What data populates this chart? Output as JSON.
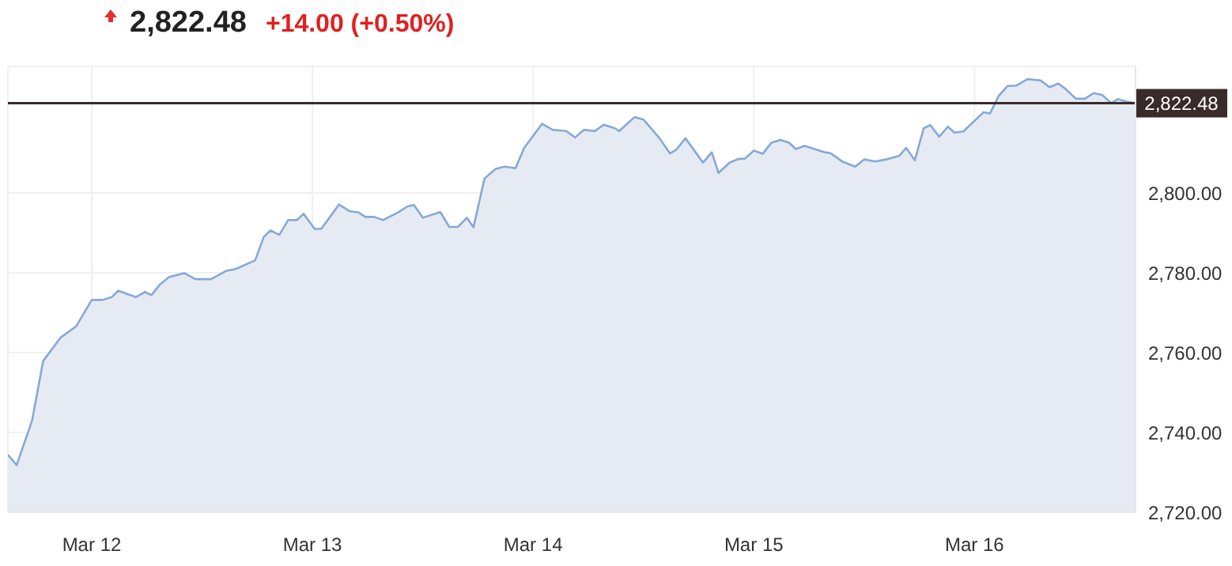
{
  "chart_data": {
    "type": "area",
    "title": "2,822.48",
    "subtitle": "+14.00 (+0.50%)",
    "x": [
      "--03-11T14:53",
      "--03-11T15:50",
      "--03-11T17:31",
      "--03-11T18:43",
      "--03-11T20:38",
      "--03-11T22:19",
      "--03-12T00:00",
      "--03-12T01:12",
      "--03-12T02:10",
      "--03-12T02:53",
      "--03-12T04:48",
      "--03-12T05:46",
      "--03-12T06:29",
      "--03-12T07:26",
      "--03-12T08:24",
      "--03-12T10:05",
      "--03-12T11:17",
      "--03-12T12:58",
      "--03-12T14:38",
      "--03-12T15:36",
      "--03-12T17:46",
      "--03-12T18:43",
      "--03-12T19:26",
      "--03-12T20:24",
      "--03-12T21:22",
      "--03-12T22:19",
      "--03-12T23:02",
      "--03-13T00:14",
      "--03-13T00:58",
      "--03-13T02:53",
      "--03-13T04:05",
      "--03-13T05:02",
      "--03-13T05:46",
      "--03-13T06:43",
      "--03-13T07:41",
      "--03-13T09:22",
      "--03-13T10:19",
      "--03-13T11:02",
      "--03-13T12:00",
      "--03-13T13:55",
      "--03-13T14:53",
      "--03-13T15:50",
      "--03-13T16:48",
      "--03-13T17:31",
      "--03-13T18:43",
      "--03-13T19:55",
      "--03-13T20:53",
      "--03-13T22:05",
      "--03-13T23:02",
      "--03-14T00:58",
      "--03-14T02:10",
      "--03-14T03:36",
      "--03-14T04:34",
      "--03-14T05:31",
      "--03-14T06:43",
      "--03-14T07:41",
      "--03-14T08:53",
      "--03-14T09:22",
      "--03-14T11:02",
      "--03-14T12:00",
      "--03-14T13:41",
      "--03-14T14:53",
      "--03-14T15:36",
      "--03-14T16:34",
      "--03-14T18:29",
      "--03-14T19:26",
      "--03-14T20:10",
      "--03-14T21:22",
      "--03-14T22:19",
      "--03-14T23:02",
      "--03-15T00:00",
      "--03-15T00:58",
      "--03-15T01:55",
      "--03-15T02:53",
      "--03-15T03:50",
      "--03-15T04:34",
      "--03-15T05:31",
      "--03-15T07:41",
      "--03-15T08:24",
      "--03-15T09:36",
      "--03-15T11:02",
      "--03-15T12:00",
      "--03-15T13:12",
      "--03-15T14:24",
      "--03-15T15:50",
      "--03-15T16:34",
      "--03-15T17:31",
      "--03-15T18:29",
      "--03-15T19:12",
      "--03-15T20:10",
      "--03-15T21:07",
      "--03-15T21:50",
      "--03-15T22:48",
      "--03-16T00:58",
      "--03-16T01:41",
      "--03-16T02:38",
      "--03-16T03:36",
      "--03-16T04:34",
      "--03-16T05:46",
      "--03-16T07:12",
      "--03-16T08:10",
      "--03-16T09:07",
      "--03-16T09:50",
      "--03-16T11:02",
      "--03-16T12:00",
      "--03-16T12:58",
      "--03-16T13:55",
      "--03-16T14:53",
      "--03-16T15:36",
      "--03-16T16:34",
      "--03-16T17:31"
    ],
    "series": [
      {
        "color": "#86a8d8",
        "values": [
          2734.4,
          2731.8,
          2743.0,
          2757.9,
          2763.8,
          2766.6,
          2773.2,
          2773.2,
          2773.9,
          2775.5,
          2773.9,
          2775.2,
          2774.4,
          2777.1,
          2778.9,
          2779.9,
          2778.4,
          2778.4,
          2780.5,
          2780.9,
          2783.1,
          2789.0,
          2790.6,
          2789.5,
          2793.2,
          2793.2,
          2794.8,
          2791.0,
          2791.0,
          2797.1,
          2795.4,
          2795.1,
          2794.0,
          2794.0,
          2793.2,
          2795.2,
          2796.6,
          2797.0,
          2793.8,
          2795.2,
          2791.5,
          2791.5,
          2793.8,
          2791.4,
          2803.6,
          2806.0,
          2806.6,
          2806.2,
          2811.3,
          2817.3,
          2815.8,
          2815.5,
          2813.9,
          2815.8,
          2815.5,
          2817.1,
          2816.2,
          2815.5,
          2819.0,
          2818.4,
          2813.9,
          2809.9,
          2810.9,
          2813.7,
          2807.6,
          2810.2,
          2805.0,
          2807.6,
          2808.5,
          2808.6,
          2810.6,
          2809.8,
          2812.6,
          2813.3,
          2812.6,
          2811.0,
          2811.8,
          2810.2,
          2809.9,
          2807.9,
          2806.6,
          2808.4,
          2807.9,
          2808.4,
          2809.3,
          2811.3,
          2808.2,
          2816.2,
          2817.0,
          2814.1,
          2816.6,
          2815.1,
          2815.4,
          2820.2,
          2819.9,
          2824.3,
          2826.8,
          2826.9,
          2828.5,
          2828.2,
          2826.5,
          2827.4,
          2826.2,
          2823.6,
          2823.6,
          2825.0,
          2824.5,
          2822.5,
          2823.5,
          2822.9,
          2822.5
        ]
      }
    ],
    "xlim": [
      "--03-11T14:53",
      "--03-16T17:31"
    ],
    "xticks": [
      {
        "value": "--03-12",
        "label": "Mar 12"
      },
      {
        "value": "--03-13",
        "label": "Mar 13"
      },
      {
        "value": "--03-14",
        "label": "Mar 14"
      },
      {
        "value": "--03-15",
        "label": "Mar 15"
      },
      {
        "value": "--03-16",
        "label": "Mar 16"
      }
    ],
    "ylim": [
      2720,
      2831.7
    ],
    "yticks": [
      {
        "value": 2720,
        "label": "2,720.00"
      },
      {
        "value": 2740,
        "label": "2,740.00"
      },
      {
        "value": 2760,
        "label": "2,760.00"
      },
      {
        "value": 2780,
        "label": "2,780.00"
      },
      {
        "value": 2800,
        "label": "2,800.00"
      }
    ],
    "ref_lines": [
      {
        "axis": "y",
        "value": 2822.48,
        "label": "2,822.48",
        "color": "#3a2a2a"
      }
    ],
    "grid": true,
    "legend": false,
    "marker": "none",
    "line_style": "solid"
  }
}
